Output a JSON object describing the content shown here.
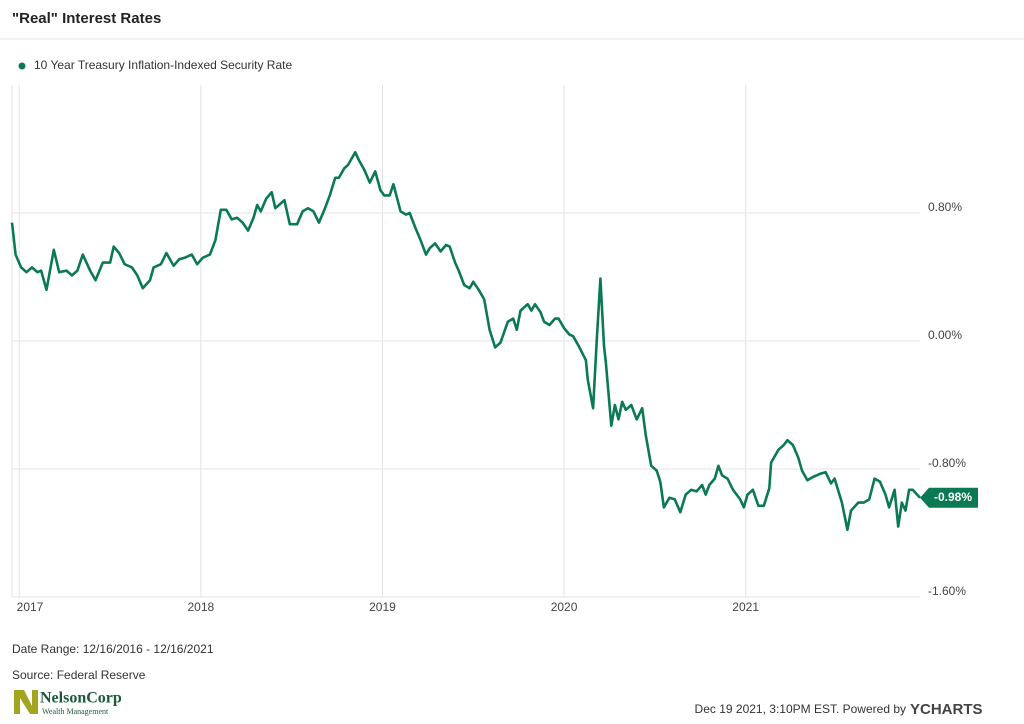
{
  "chart_data": {
    "type": "line",
    "title": "\"Real\" Interest Rates",
    "series": [
      {
        "name": "10 Year Treasury Inflation-Indexed Security Rate",
        "color": "#0b7a53",
        "last_value_label": "-0.98%",
        "values": [
          0.74,
          0.54,
          0.46,
          0.43,
          0.46,
          0.43,
          0.44,
          0.32,
          0.57,
          0.43,
          0.44,
          0.41,
          0.44,
          0.54,
          0.44,
          0.38,
          0.49,
          0.49,
          0.59,
          0.55,
          0.48,
          0.46,
          0.41,
          0.33,
          0.38,
          0.46,
          0.48,
          0.55,
          0.47,
          0.51,
          0.52,
          0.54,
          0.48,
          0.52,
          0.54,
          0.63,
          0.82,
          0.82,
          0.76,
          0.77,
          0.74,
          0.69,
          0.77,
          0.85,
          0.81,
          0.89,
          0.93,
          0.83,
          0.85,
          0.88,
          0.73,
          0.73,
          0.81,
          0.83,
          0.81,
          0.74,
          0.82,
          0.91,
          1.02,
          1.02,
          1.08,
          1.1,
          1.18,
          1.13,
          1.07,
          0.99,
          1.06,
          0.94,
          0.91,
          0.91,
          0.98,
          0.81,
          0.79,
          0.8,
          0.71,
          0.63,
          0.54,
          0.58,
          0.61,
          0.56,
          0.6,
          0.59,
          0.49,
          0.44,
          0.35,
          0.33,
          0.37,
          0.32,
          0.26,
          0.07,
          -0.04,
          -0.01,
          0.12,
          0.14,
          0.07,
          0.19,
          0.23,
          0.19,
          0.23,
          0.18,
          0.12,
          0.1,
          0.14,
          0.14,
          0.08,
          0.04,
          0.03,
          -0.03,
          -0.12,
          -0.24,
          -0.42,
          0.01,
          0.39,
          -0.03,
          -0.13,
          -0.53,
          -0.4,
          -0.49,
          -0.38,
          -0.43,
          -0.4,
          -0.49,
          -0.42,
          -0.59,
          -0.78,
          -0.81,
          -0.88,
          -1.04,
          -0.98,
          -0.99,
          -1.07,
          -0.96,
          -0.93,
          -0.94,
          -0.9,
          -0.96,
          -0.9,
          -0.86,
          -0.78,
          -0.84,
          -0.86,
          -0.93,
          -0.99,
          -1.04,
          -0.96,
          -0.93,
          -1.03,
          -1.03,
          -0.92,
          -0.76,
          -0.68,
          -0.65,
          -0.62,
          -0.65,
          -0.73,
          -0.81,
          -0.87,
          -0.85,
          -0.83,
          -0.82,
          -0.89,
          -0.86,
          -1.01,
          -1.18,
          -1.06,
          -1.01,
          -1.01,
          -0.99,
          -0.86,
          -0.88,
          -0.96,
          -1.04,
          -0.93,
          -1.16,
          -1.01,
          -1.06,
          -0.93,
          -0.93,
          -0.98
        ]
      }
    ],
    "x": [
      2016.96,
      2016.98,
      2017.01,
      2017.04,
      2017.07,
      2017.1,
      2017.12,
      2017.15,
      2017.19,
      2017.22,
      2017.26,
      2017.29,
      2017.32,
      2017.35,
      2017.39,
      2017.42,
      2017.46,
      2017.5,
      2017.52,
      2017.55,
      2017.58,
      2017.62,
      2017.65,
      2017.68,
      2017.72,
      2017.74,
      2017.78,
      2017.81,
      2017.85,
      2017.88,
      2017.91,
      2017.95,
      2017.98,
      2018.01,
      2018.05,
      2018.08,
      2018.11,
      2018.14,
      2018.17,
      2018.2,
      2018.23,
      2018.26,
      2018.29,
      2018.31,
      2018.33,
      2018.36,
      2018.39,
      2018.41,
      2018.43,
      2018.46,
      2018.49,
      2018.53,
      2018.56,
      2018.59,
      2018.62,
      2018.65,
      2018.68,
      2018.71,
      2018.74,
      2018.76,
      2018.79,
      2018.81,
      2018.85,
      2018.87,
      2018.9,
      2018.93,
      2018.96,
      2018.99,
      2019.01,
      2019.04,
      2019.06,
      2019.1,
      2019.13,
      2019.15,
      2019.18,
      2019.21,
      2019.24,
      2019.26,
      2019.29,
      2019.32,
      2019.35,
      2019.37,
      2019.4,
      2019.42,
      2019.45,
      2019.48,
      2019.5,
      2019.53,
      2019.56,
      2019.59,
      2019.62,
      2019.65,
      2019.69,
      2019.72,
      2019.74,
      2019.76,
      2019.8,
      2019.82,
      2019.84,
      2019.87,
      2019.89,
      2019.92,
      2019.95,
      2019.97,
      2020.0,
      2020.03,
      2020.05,
      2020.08,
      2020.12,
      2020.13,
      2020.16,
      2020.18,
      2020.2,
      2020.22,
      2020.23,
      2020.26,
      2020.28,
      2020.3,
      2020.32,
      2020.34,
      2020.37,
      2020.4,
      2020.43,
      2020.45,
      2020.48,
      2020.51,
      2020.53,
      2020.55,
      2020.58,
      2020.61,
      2020.64,
      2020.67,
      2020.7,
      2020.73,
      2020.76,
      2020.78,
      2020.8,
      2020.83,
      2020.85,
      2020.87,
      2020.9,
      2020.93,
      2020.97,
      2020.99,
      2021.01,
      2021.04,
      2021.07,
      2021.1,
      2021.13,
      2021.14,
      2021.18,
      2021.21,
      2021.23,
      2021.26,
      2021.29,
      2021.31,
      2021.34,
      2021.37,
      2021.41,
      2021.44,
      2021.47,
      2021.49,
      2021.53,
      2021.56,
      2021.58,
      2021.62,
      2021.65,
      2021.68,
      2021.71,
      2021.74,
      2021.77,
      2021.79,
      2021.82,
      2021.84,
      2021.86,
      2021.88,
      2021.9,
      2021.92,
      2021.96
    ],
    "xlim": [
      2016.96,
      2021.96
    ],
    "xticks": [
      2017,
      2018,
      2019,
      2020,
      2021
    ],
    "ylim": [
      -1.6,
      1.6
    ],
    "yticks": [
      {
        "value": -1.6,
        "label": "-1.60%"
      },
      {
        "value": -0.8,
        "label": "-0.80%"
      },
      {
        "value": 0,
        "label": "0.00%"
      },
      {
        "value": 0.8,
        "label": "0.80%"
      }
    ],
    "grid": true
  },
  "footer": {
    "date_range": "Date Range: 12/16/2016 - 12/16/2021",
    "source": "Source: Federal Reserve",
    "logo_name": "NelsonCorp",
    "logo_sub": "Wealth Management",
    "timestamp": "Dec 19 2021, 3:10PM EST.  Powered by",
    "brand": "YCHARTS"
  }
}
